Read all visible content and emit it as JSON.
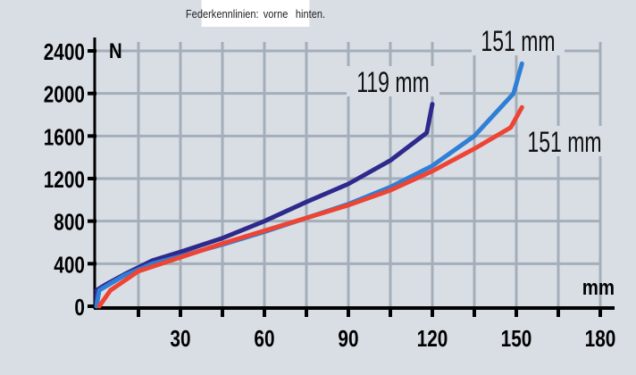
{
  "legend": {
    "title": "Federkennlinien:",
    "items": [
      {
        "label": "vorne",
        "color": "#2f7fd6"
      },
      {
        "label": "hinten.",
        "color": "#ee4433"
      }
    ]
  },
  "chart_data": {
    "type": "line",
    "title": "",
    "xlabel": "mm",
    "ylabel": "N",
    "xlim": [
      0,
      180
    ],
    "ylim": [
      0,
      2400
    ],
    "x_ticks": [
      30,
      60,
      90,
      120,
      150,
      180
    ],
    "x_minor_ticks": [
      15,
      45,
      75,
      105,
      135,
      165
    ],
    "y_ticks": [
      0,
      400,
      800,
      1200,
      1600,
      2000,
      2400
    ],
    "grid": true,
    "legend_position": "top-center",
    "series": [
      {
        "color": "#2e2a8c",
        "points": [
          [
            0,
            0
          ],
          [
            0,
            150
          ],
          [
            3,
            200
          ],
          [
            10,
            300
          ],
          [
            20,
            430
          ],
          [
            30,
            510
          ],
          [
            45,
            640
          ],
          [
            60,
            800
          ],
          [
            75,
            980
          ],
          [
            90,
            1150
          ],
          [
            105,
            1370
          ],
          [
            118,
            1630
          ],
          [
            120,
            1900
          ]
        ]
      },
      {
        "name": "vorne",
        "color": "#2f7fd6",
        "points": [
          [
            0,
            0
          ],
          [
            1,
            150
          ],
          [
            10,
            290
          ],
          [
            20,
            400
          ],
          [
            30,
            470
          ],
          [
            45,
            580
          ],
          [
            60,
            700
          ],
          [
            75,
            830
          ],
          [
            90,
            960
          ],
          [
            105,
            1120
          ],
          [
            120,
            1320
          ],
          [
            135,
            1600
          ],
          [
            149,
            2000
          ],
          [
            152,
            2280
          ]
        ]
      },
      {
        "name": "hinten.",
        "color": "#ee4433",
        "points": [
          [
            1,
            0
          ],
          [
            5,
            150
          ],
          [
            15,
            330
          ],
          [
            30,
            460
          ],
          [
            45,
            590
          ],
          [
            60,
            710
          ],
          [
            75,
            830
          ],
          [
            90,
            950
          ],
          [
            105,
            1090
          ],
          [
            120,
            1270
          ],
          [
            135,
            1480
          ],
          [
            148,
            1680
          ],
          [
            152,
            1870
          ]
        ]
      }
    ],
    "annotations": [
      {
        "text": "119 mm",
        "x": 120,
        "y": 2000
      },
      {
        "text": "151 mm",
        "x": 151,
        "y": 2400
      },
      {
        "text": "151 mm",
        "x": 151,
        "y": 1560
      }
    ]
  }
}
